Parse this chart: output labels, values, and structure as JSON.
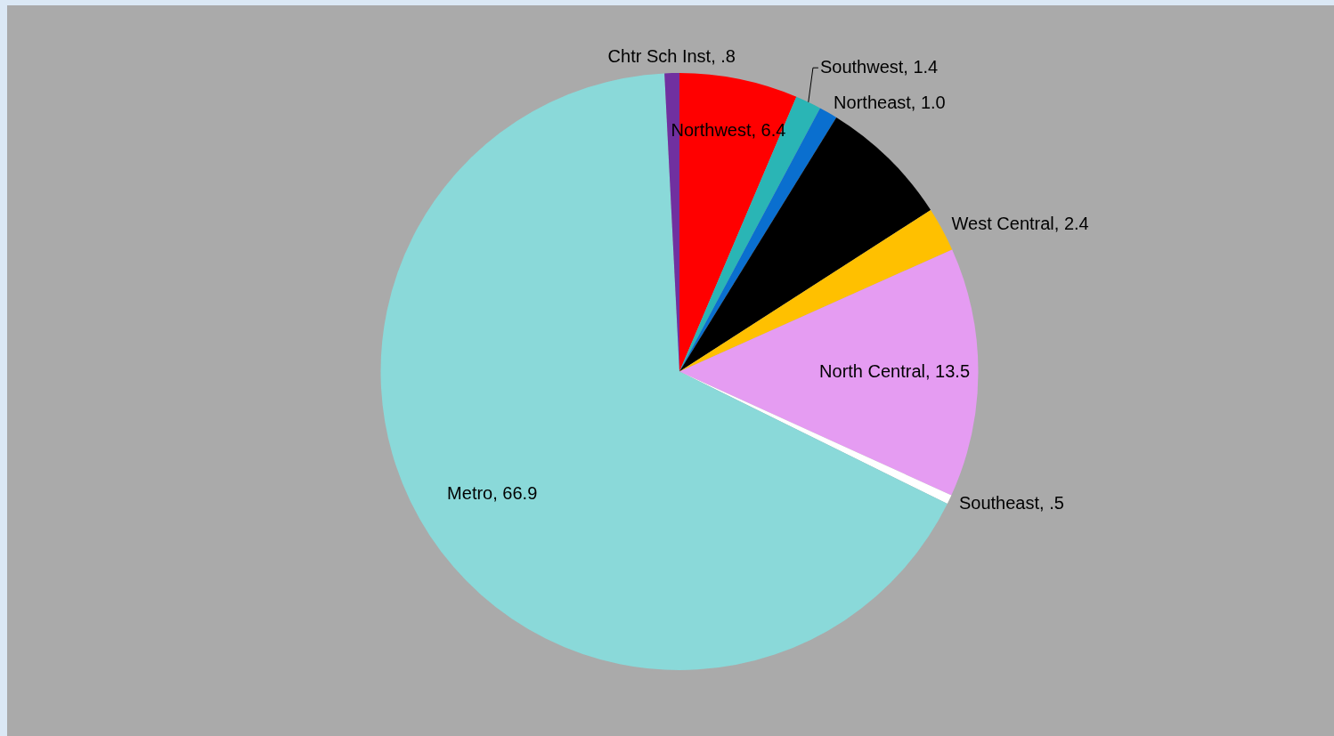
{
  "chart_data": {
    "type": "pie",
    "categories": [
      "Northwest",
      "Southwest",
      "Northeast",
      null,
      "West Central",
      "North Central",
      "Southeast",
      "Metro",
      "Chtr Sch Inst"
    ],
    "values": [
      6.4,
      1.4,
      1.0,
      7.1,
      2.4,
      13.5,
      0.5,
      66.9,
      0.8
    ],
    "value_labels": [
      "6.4",
      "1.4",
      "1.0",
      null,
      "2.4",
      "13.5",
      ".5",
      "66.9",
      ".8"
    ],
    "colors": [
      "#ff0000",
      "#2ab5b5",
      "#0a6fcf",
      "#000000",
      "#ffc000",
      "#e59cf2",
      "#ffffff",
      "#8ad9d9",
      "#7030a0"
    ],
    "legend": false
  }
}
